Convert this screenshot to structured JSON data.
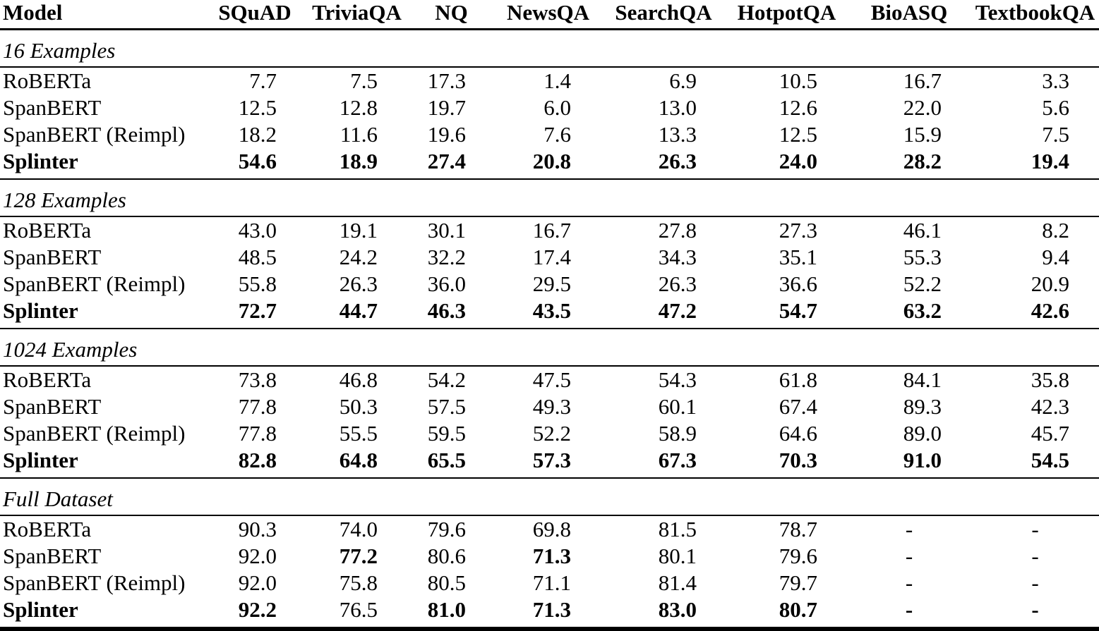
{
  "colors": {
    "background": "#ffffff",
    "text": "#000000",
    "rule": "#000000"
  },
  "header": {
    "columns": [
      "Model",
      "SQuAD",
      "TriviaQA",
      "NQ",
      "NewsQA",
      "SearchQA",
      "HotpotQA",
      "BioASQ",
      "TextbookQA"
    ]
  },
  "sections": [
    {
      "title": "16 Examples",
      "rows": [
        {
          "model": "RoBERTa",
          "model_bold": false,
          "values": [
            "7.7",
            "7.5",
            "17.3",
            "1.4",
            "6.9",
            "10.5",
            "16.7",
            "3.3"
          ],
          "bold": []
        },
        {
          "model": "SpanBERT",
          "model_bold": false,
          "values": [
            "12.5",
            "12.8",
            "19.7",
            "6.0",
            "13.0",
            "12.6",
            "22.0",
            "5.6"
          ],
          "bold": []
        },
        {
          "model": "SpanBERT (Reimpl)",
          "model_bold": false,
          "values": [
            "18.2",
            "11.6",
            "19.6",
            "7.6",
            "13.3",
            "12.5",
            "15.9",
            "7.5"
          ],
          "bold": []
        },
        {
          "model": "Splinter",
          "model_bold": true,
          "values": [
            "54.6",
            "18.9",
            "27.4",
            "20.8",
            "26.3",
            "24.0",
            "28.2",
            "19.4"
          ],
          "bold": [
            0,
            1,
            2,
            3,
            4,
            5,
            6,
            7
          ]
        }
      ]
    },
    {
      "title": "128 Examples",
      "rows": [
        {
          "model": "RoBERTa",
          "model_bold": false,
          "values": [
            "43.0",
            "19.1",
            "30.1",
            "16.7",
            "27.8",
            "27.3",
            "46.1",
            "8.2"
          ],
          "bold": []
        },
        {
          "model": "SpanBERT",
          "model_bold": false,
          "values": [
            "48.5",
            "24.2",
            "32.2",
            "17.4",
            "34.3",
            "35.1",
            "55.3",
            "9.4"
          ],
          "bold": []
        },
        {
          "model": "SpanBERT (Reimpl)",
          "model_bold": false,
          "values": [
            "55.8",
            "26.3",
            "36.0",
            "29.5",
            "26.3",
            "36.6",
            "52.2",
            "20.9"
          ],
          "bold": []
        },
        {
          "model": "Splinter",
          "model_bold": true,
          "values": [
            "72.7",
            "44.7",
            "46.3",
            "43.5",
            "47.2",
            "54.7",
            "63.2",
            "42.6"
          ],
          "bold": [
            0,
            1,
            2,
            3,
            4,
            5,
            6,
            7
          ]
        }
      ]
    },
    {
      "title": "1024 Examples",
      "rows": [
        {
          "model": "RoBERTa",
          "model_bold": false,
          "values": [
            "73.8",
            "46.8",
            "54.2",
            "47.5",
            "54.3",
            "61.8",
            "84.1",
            "35.8"
          ],
          "bold": []
        },
        {
          "model": "SpanBERT",
          "model_bold": false,
          "values": [
            "77.8",
            "50.3",
            "57.5",
            "49.3",
            "60.1",
            "67.4",
            "89.3",
            "42.3"
          ],
          "bold": []
        },
        {
          "model": "SpanBERT (Reimpl)",
          "model_bold": false,
          "values": [
            "77.8",
            "55.5",
            "59.5",
            "52.2",
            "58.9",
            "64.6",
            "89.0",
            "45.7"
          ],
          "bold": []
        },
        {
          "model": "Splinter",
          "model_bold": true,
          "values": [
            "82.8",
            "64.8",
            "65.5",
            "57.3",
            "67.3",
            "70.3",
            "91.0",
            "54.5"
          ],
          "bold": [
            0,
            1,
            2,
            3,
            4,
            5,
            6,
            7
          ]
        }
      ]
    },
    {
      "title": "Full Dataset",
      "rows": [
        {
          "model": "RoBERTa",
          "model_bold": false,
          "values": [
            "90.3",
            "74.0",
            "79.6",
            "69.8",
            "81.5",
            "78.7",
            "-",
            "-"
          ],
          "bold": []
        },
        {
          "model": "SpanBERT",
          "model_bold": false,
          "values": [
            "92.0",
            "77.2",
            "80.6",
            "71.3",
            "80.1",
            "79.6",
            "-",
            "-"
          ],
          "bold": [
            1,
            3
          ]
        },
        {
          "model": "SpanBERT (Reimpl)",
          "model_bold": false,
          "values": [
            "92.0",
            "75.8",
            "80.5",
            "71.1",
            "81.4",
            "79.7",
            "-",
            "-"
          ],
          "bold": []
        },
        {
          "model": "Splinter",
          "model_bold": true,
          "values": [
            "92.2",
            "76.5",
            "81.0",
            "71.3",
            "83.0",
            "80.7",
            "-",
            "-"
          ],
          "bold": [
            0,
            2,
            3,
            4,
            5,
            6,
            7
          ]
        }
      ]
    }
  ]
}
